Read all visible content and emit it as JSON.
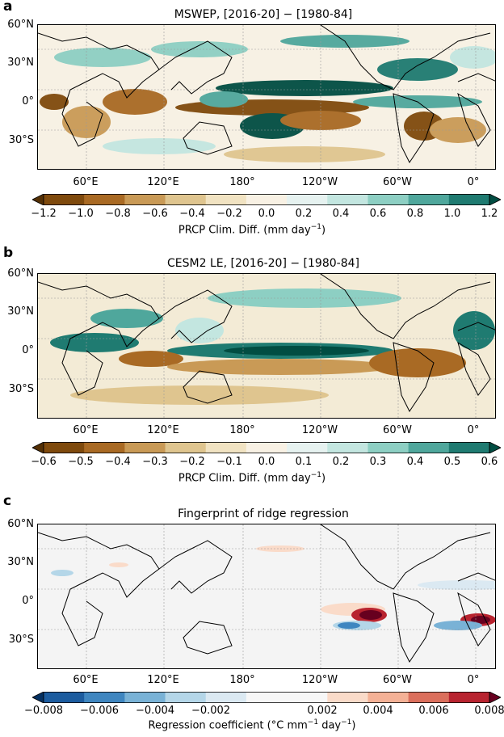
{
  "panels": [
    {
      "letter": "a",
      "title": "MSWEP, [2016-20] − [1980-84]",
      "lat_labels": [
        "60°N",
        "30°N",
        "0°",
        "30°S"
      ],
      "lon_labels": [
        "60°E",
        "120°E",
        "180°",
        "120°W",
        "60°W",
        "0°"
      ],
      "colorbar": {
        "ticks": [
          "−1.2",
          "−1.0",
          "−0.8",
          "−0.6",
          "−0.4",
          "−0.2",
          "0.0",
          "0.2",
          "0.4",
          "0.6",
          "0.8",
          "1.0",
          "1.2"
        ],
        "label": "PRCP Clim. Diff. (mm day",
        "label_sup": "−1",
        "label_end": ")"
      }
    },
    {
      "letter": "b",
      "title": "CESM2 LE, [2016-20] − [1980-84]",
      "lat_labels": [
        "60°N",
        "30°N",
        "0°",
        "30°S"
      ],
      "lon_labels": [
        "60°E",
        "120°E",
        "180°",
        "120°W",
        "60°W",
        "0°"
      ],
      "colorbar": {
        "ticks": [
          "−0.6",
          "−0.5",
          "−0.4",
          "−0.3",
          "−0.2",
          "−0.1",
          "0.0",
          "0.1",
          "0.2",
          "0.3",
          "0.4",
          "0.5",
          "0.6"
        ],
        "label": "PRCP Clim. Diff. (mm day",
        "label_sup": "−1",
        "label_end": ")"
      }
    },
    {
      "letter": "c",
      "title": "Fingerprint of ridge regression",
      "lat_labels": [
        "60°N",
        "30°N",
        "0°",
        "30°S"
      ],
      "lon_labels": [
        "60°E",
        "120°E",
        "180°",
        "120°W",
        "60°W",
        "0°"
      ],
      "colorbar": {
        "ticks": [
          "−0.008",
          "−0.006",
          "−0.004",
          "−0.002",
          "0.002",
          "0.004",
          "0.006",
          "0.008"
        ],
        "label": "Regression coefficient (°C mm",
        "label_sup": "−1",
        "label_mid": " day",
        "label_sup2": "−1",
        "label_end": ")"
      }
    }
  ],
  "colors": {
    "brbg": [
      "#543005",
      "#7f4a0d",
      "#a96a24",
      "#c99a56",
      "#dfc58f",
      "#f1e3c2",
      "#f8f1e4",
      "#e6f2f0",
      "#c3e6e0",
      "#8dcfc3",
      "#4fa79c",
      "#1f7b71",
      "#014d42"
    ],
    "rdbu": [
      "#053061",
      "#1c5c9f",
      "#3f86c0",
      "#79b2d6",
      "#b4d6e8",
      "#dbe9f2",
      "#f7f7f7",
      "#f7f7f7",
      "#fadbc9",
      "#f4b196",
      "#db6f5c",
      "#b8232f",
      "#67001f"
    ],
    "land_outline": "#000000",
    "grid": "#9a9a9a"
  }
}
